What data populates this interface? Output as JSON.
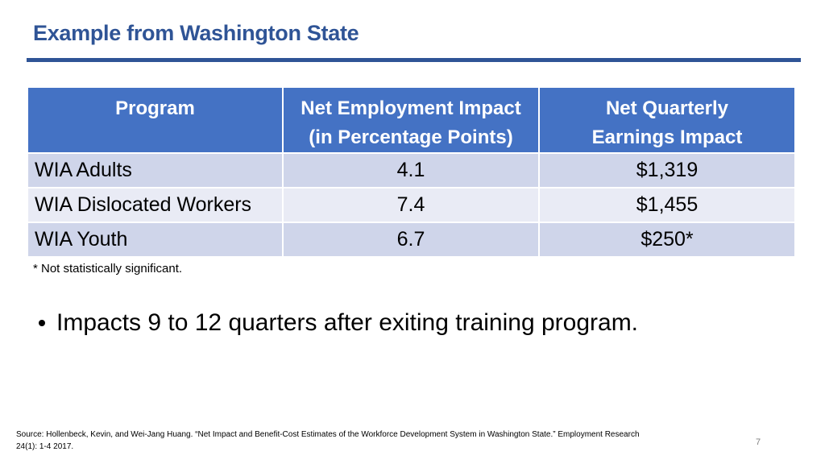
{
  "slide": {
    "title": "Example from Washington State",
    "page_number": "7"
  },
  "table": {
    "headers": [
      {
        "line1": "Program",
        "line2": ""
      },
      {
        "line1": "Net Employment Impact",
        "line2": "(in Percentage Points)"
      },
      {
        "line1": "Net Quarterly",
        "line2": "Earnings Impact"
      }
    ],
    "rows": [
      {
        "program": "WIA Adults",
        "employment_impact": "4.1",
        "earnings_impact": "$1,319"
      },
      {
        "program": "WIA Dislocated Workers",
        "employment_impact": "7.4",
        "earnings_impact": "$1,455"
      },
      {
        "program": "WIA Youth",
        "employment_impact": "6.7",
        "earnings_impact": "$250*"
      }
    ]
  },
  "footnote": "* Not statistically significant.",
  "bullet": "Impacts 9 to 12 quarters after exiting training program.",
  "source": {
    "line1": "Source: Hollenbeck, Kevin, and Wei-Jang Huang. “Net Impact and Benefit-Cost Estimates of the Workforce Development System in Washington State.” Employment Research",
    "line2": "24(1): 1-4 2017."
  },
  "colors": {
    "title": "#2f5496",
    "header_bg": "#4472c4",
    "row_dark": "#cfd5ea",
    "row_light": "#e9ebf5"
  }
}
